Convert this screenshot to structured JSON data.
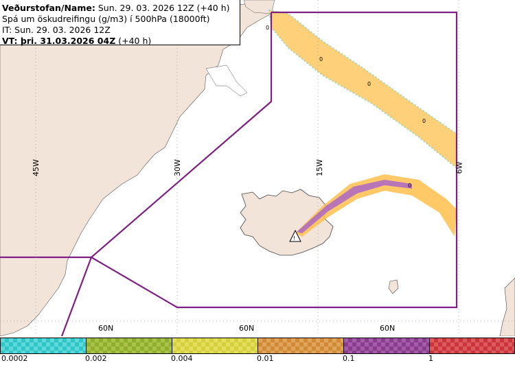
{
  "header": {
    "line1_bold": "Veðurstofan/Name:",
    "line1_rest": " Sun. 29. 03. 2026 12Z (+40 h)",
    "line2": "Spá um öskudreifingu (g/m3) í 500hPa (18000ft)",
    "line3": "IT: Sun. 29. 03. 2026 12Z",
    "line4_bold": "VT: þri. 31.03.2026 04Z",
    "line4_rest": " (+40 h)"
  },
  "graticule": {
    "lon_labels": [
      "45W",
      "30W",
      "15W",
      "6W"
    ],
    "lat_labels": [
      "60N",
      "60N",
      "60N"
    ]
  },
  "contour_labels": [
    "0",
    "0",
    "0",
    "0",
    "0"
  ],
  "legend": {
    "ticks": [
      "0.0002",
      "0.002",
      "0.004",
      "0.01",
      "0.1",
      "1"
    ],
    "colors": [
      "#2ec7c9",
      "#8fae2e",
      "#d4cf3a",
      "#d18a36",
      "#8a3c8e",
      "#c9353a"
    ]
  },
  "colors": {
    "land": "#f2e4d8",
    "sea": "#ffffff",
    "boundary": "#7d1f82",
    "ash_low": "#ffc04d",
    "ash_high": "#b06cc0"
  },
  "icons": {
    "volcano": "triangle-warning-icon"
  }
}
